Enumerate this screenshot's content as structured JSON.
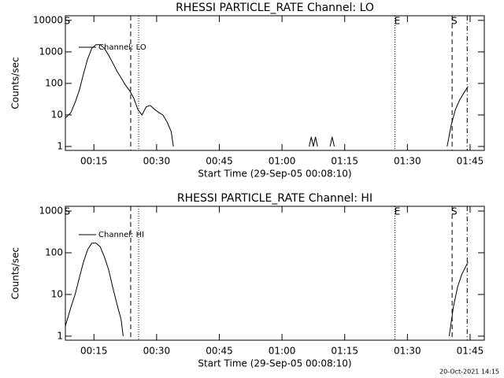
{
  "chart_data": [
    {
      "type": "line",
      "title": "RHESSI PARTICLE_RATE Channel: LO",
      "xlabel": "Start Time (29-Sep-05 00:08:10)",
      "ylabel": "Counts/sec",
      "ylog": true,
      "legend": "upper left",
      "grid": false,
      "xlim": [
        8.17,
        108.4
      ],
      "ylim": [
        0.75,
        14000
      ],
      "xticks": [
        {
          "value": 15,
          "label": "00:15"
        },
        {
          "value": 30,
          "label": "00:30"
        },
        {
          "value": 45,
          "label": "00:45"
        },
        {
          "value": 60,
          "label": "01:00"
        },
        {
          "value": 75,
          "label": "01:15"
        },
        {
          "value": 90,
          "label": "01:30"
        },
        {
          "value": 105,
          "label": "01:45"
        }
      ],
      "yticks": [
        1,
        10,
        100,
        1000,
        10000
      ],
      "markers": [
        {
          "x": 23.8,
          "style": "dashed"
        },
        {
          "x": 25.7,
          "style": "dotted"
        },
        {
          "x": 87,
          "style": "dotted"
        },
        {
          "x": 100.7,
          "style": "dashed"
        },
        {
          "x": 104.3,
          "style": "dashdot"
        }
      ],
      "annotations": [
        {
          "text": "S",
          "x": 8.6
        },
        {
          "text": "E",
          "x": 87.6
        },
        {
          "text": "S",
          "x": 101.2
        }
      ],
      "series": [
        {
          "name": "Channel: LO",
          "color": "#000000",
          "x": [
            8.2,
            9.5,
            10.5,
            11.5,
            12.5,
            13.5,
            14.5,
            15.5,
            16.5,
            17.5,
            18.5,
            19.5,
            20.5,
            21.5,
            22.5,
            23.5,
            24.5,
            25.5,
            26.5,
            27.5,
            28.5,
            29.5,
            30.5,
            31.5,
            32.5,
            33.5,
            34,
            50,
            66.5,
            67,
            67.5,
            68,
            68.5,
            70,
            71.5,
            72,
            72.5,
            90,
            99.5,
            100.5,
            101.5,
            102.5,
            103.5,
            104.5
          ],
          "values": [
            8,
            12,
            25,
            60,
            200,
            600,
            1300,
            1700,
            1700,
            1300,
            800,
            450,
            250,
            150,
            90,
            60,
            35,
            15,
            10,
            18,
            20,
            15,
            12,
            10,
            6,
            3,
            1,
            null,
            1,
            2,
            1,
            2,
            1,
            null,
            1,
            2,
            1,
            null,
            1,
            5,
            15,
            30,
            50,
            80
          ]
        }
      ]
    },
    {
      "type": "line",
      "title": "RHESSI PARTICLE_RATE Channel: HI",
      "xlabel": "Start Time (29-Sep-05 00:08:10)",
      "ylabel": "Counts/sec",
      "ylog": true,
      "legend": "upper left",
      "grid": false,
      "xlim": [
        8.17,
        108.4
      ],
      "ylim": [
        0.8,
        1300
      ],
      "xticks": [
        {
          "value": 15,
          "label": "00:15"
        },
        {
          "value": 30,
          "label": "00:30"
        },
        {
          "value": 45,
          "label": "00:45"
        },
        {
          "value": 60,
          "label": "01:00"
        },
        {
          "value": 75,
          "label": "01:15"
        },
        {
          "value": 90,
          "label": "01:30"
        },
        {
          "value": 105,
          "label": "01:45"
        }
      ],
      "yticks": [
        1,
        10,
        100,
        1000
      ],
      "markers": [
        {
          "x": 23.8,
          "style": "dashed"
        },
        {
          "x": 25.7,
          "style": "dotted"
        },
        {
          "x": 87,
          "style": "dotted"
        },
        {
          "x": 100.7,
          "style": "dashed"
        },
        {
          "x": 104.3,
          "style": "dashdot"
        }
      ],
      "annotations": [
        {
          "text": "S",
          "x": 8.6
        },
        {
          "text": "E",
          "x": 87.6
        },
        {
          "text": "S",
          "x": 101.2
        }
      ],
      "series": [
        {
          "name": "Channel: HI",
          "color": "#000000",
          "x": [
            8.2,
            9.5,
            10.5,
            11.5,
            12.5,
            13.5,
            14.5,
            15.5,
            16.5,
            17.5,
            18.5,
            19.5,
            20.5,
            21.5,
            22,
            60,
            100,
            101,
            102,
            103,
            104.5
          ],
          "values": [
            1.8,
            5,
            10,
            25,
            60,
            120,
            170,
            170,
            140,
            80,
            40,
            15,
            6,
            2.5,
            1,
            null,
            1,
            5,
            15,
            30,
            60
          ]
        }
      ]
    }
  ],
  "footer": "20-Oct-2021 14:15"
}
